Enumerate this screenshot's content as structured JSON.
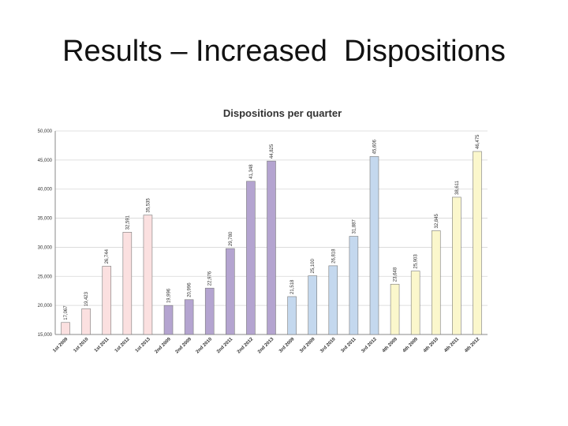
{
  "slide": {
    "title": "Results – Increased  Dispositions"
  },
  "chart_data": {
    "type": "bar",
    "title": "Dispositions per quarter",
    "xlabel": "",
    "ylabel": "",
    "ylim": [
      15000,
      50000
    ],
    "yticks": [
      "15,000",
      "20,000",
      "25,000",
      "30,000",
      "35,000",
      "40,000",
      "45,000",
      "50,000"
    ],
    "grid": true,
    "categories": [
      "1st 2009",
      "1st 2010",
      "1st 2011",
      "1st 2012",
      "1st 2013",
      "2nd 2009",
      "2nd 2009",
      "2nd 2010",
      "2nd 2011",
      "2nd 2012",
      "2nd 2013",
      "3rd 2009",
      "3rd 2009",
      "3rd 2010",
      "3rd 2011",
      "3rd 2012",
      "4th 2009",
      "4th 2009",
      "4th 2010",
      "4th 2011",
      "4th 2012"
    ],
    "values": [
      17067,
      19423,
      26744,
      32591,
      35535,
      19996,
      20996,
      22976,
      29780,
      41348,
      44825,
      21518,
      25100,
      26818,
      31887,
      45606,
      23648,
      25903,
      32845,
      38611,
      46475
    ],
    "labels": [
      "17,067",
      "19,423",
      "26,744",
      "32,591",
      "35,535",
      "19,996",
      "20,996",
      "22,976",
      "29,780",
      "41,348",
      "44,825",
      "21,518",
      "25,100",
      "26,818",
      "31,887",
      "45,606",
      "23,648",
      "25,903",
      "32,845",
      "38,611",
      "46,475"
    ],
    "colors": [
      "#fbe0e0",
      "#fbe0e0",
      "#fbe0e0",
      "#fbe0e0",
      "#fbe0e0",
      "#b4a4d0",
      "#b4a4d0",
      "#b4a4d0",
      "#b4a4d0",
      "#b4a4d0",
      "#b4a4d0",
      "#c4d8ee",
      "#c4d8ee",
      "#c4d8ee",
      "#c4d8ee",
      "#c4d8ee",
      "#fbf7cc",
      "#fbf7cc",
      "#fbf7cc",
      "#fbf7cc",
      "#fbf7cc"
    ]
  }
}
